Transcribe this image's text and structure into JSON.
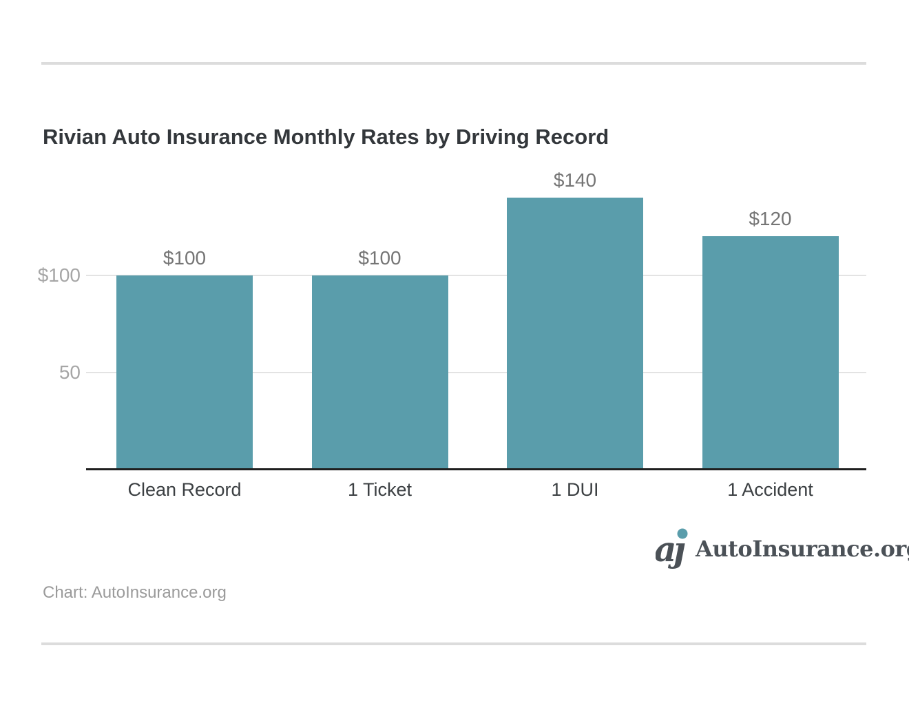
{
  "page": {
    "credit": "Chart: AutoInsurance.org",
    "logo": {
      "text": "AutoInsurance.org",
      "icon": "autoinsurance-aj-monogram"
    }
  },
  "colors": {
    "bar": "#5a9dab",
    "title_text": "#33373b",
    "category_label": "#3c4043",
    "y_tick_label": "#a6a6a6",
    "value_label": "#757575",
    "gridline": "#e3e3e3",
    "axis_line": "#1f1f1f",
    "divider": "#dcdcdc",
    "logo_text": "#4b5157",
    "logo_dot": "#5a9dab",
    "credit_text": "#9a9a9a"
  },
  "chart_data": {
    "type": "bar",
    "title": "Rivian Auto Insurance Monthly Rates by Driving Record",
    "categories": [
      "Clean Record",
      "1 Ticket",
      "1 DUI",
      "1 Accident"
    ],
    "values": [
      100,
      100,
      140,
      120
    ],
    "value_labels": [
      "$100",
      "$100",
      "$140",
      "$120"
    ],
    "y_ticks": [
      {
        "value": 50,
        "label": "50"
      },
      {
        "value": 100,
        "label": "$100"
      }
    ],
    "ylim": [
      0,
      160
    ],
    "xlabel": "",
    "ylabel": "",
    "grid": "horizontal",
    "legend": "none",
    "bar_orientation": "vertical"
  }
}
